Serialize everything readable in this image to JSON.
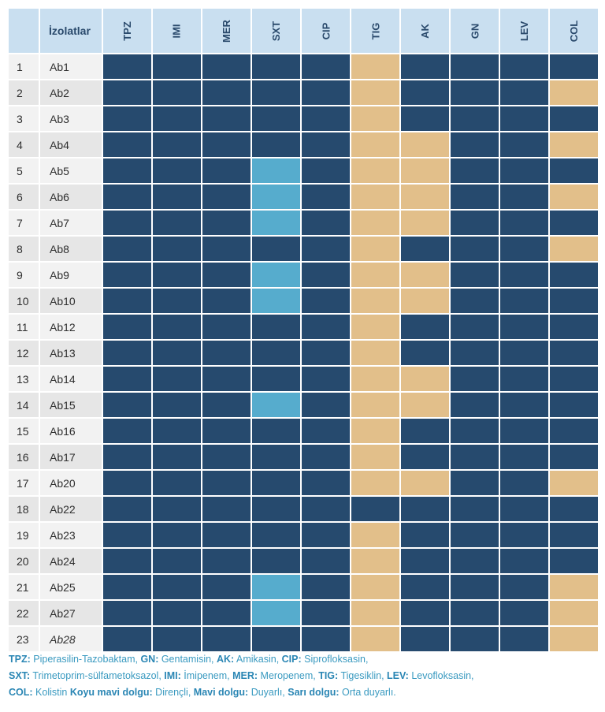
{
  "table": {
    "corner_label": "",
    "isolates_header": "İzolatlar",
    "antibiotics": [
      "TPZ",
      "IMI",
      "MER",
      "SXT",
      "CIP",
      "TIG",
      "AK",
      "GN",
      "LEV",
      "COL"
    ],
    "fill_colors": {
      "R": "#264a6e",
      "S": "#56accd",
      "I": "#e2bf8a"
    },
    "rows": [
      {
        "num": "1",
        "isolate": "Ab1",
        "values": [
          "R",
          "R",
          "R",
          "R",
          "R",
          "I",
          "R",
          "R",
          "R",
          "R"
        ]
      },
      {
        "num": "2",
        "isolate": "Ab2",
        "values": [
          "R",
          "R",
          "R",
          "R",
          "R",
          "I",
          "R",
          "R",
          "R",
          "I"
        ]
      },
      {
        "num": "3",
        "isolate": "Ab3",
        "values": [
          "R",
          "R",
          "R",
          "R",
          "R",
          "I",
          "R",
          "R",
          "R",
          "R"
        ]
      },
      {
        "num": "4",
        "isolate": "Ab4",
        "values": [
          "R",
          "R",
          "R",
          "R",
          "R",
          "I",
          "I",
          "R",
          "R",
          "I"
        ]
      },
      {
        "num": "5",
        "isolate": "Ab5",
        "values": [
          "R",
          "R",
          "R",
          "S",
          "R",
          "I",
          "I",
          "R",
          "R",
          "R"
        ]
      },
      {
        "num": "6",
        "isolate": "Ab6",
        "values": [
          "R",
          "R",
          "R",
          "S",
          "R",
          "I",
          "I",
          "R",
          "R",
          "I"
        ]
      },
      {
        "num": "7",
        "isolate": "Ab7",
        "values": [
          "R",
          "R",
          "R",
          "S",
          "R",
          "I",
          "I",
          "R",
          "R",
          "R"
        ]
      },
      {
        "num": "8",
        "isolate": "Ab8",
        "values": [
          "R",
          "R",
          "R",
          "R",
          "R",
          "I",
          "R",
          "R",
          "R",
          "I"
        ]
      },
      {
        "num": "9",
        "isolate": "Ab9",
        "values": [
          "R",
          "R",
          "R",
          "S",
          "R",
          "I",
          "I",
          "R",
          "R",
          "R"
        ]
      },
      {
        "num": "10",
        "isolate": "Ab10",
        "values": [
          "R",
          "R",
          "R",
          "S",
          "R",
          "I",
          "I",
          "R",
          "R",
          "R"
        ]
      },
      {
        "num": "11",
        "isolate": "Ab12",
        "values": [
          "R",
          "R",
          "R",
          "R",
          "R",
          "I",
          "R",
          "R",
          "R",
          "R"
        ]
      },
      {
        "num": "12",
        "isolate": "Ab13",
        "values": [
          "R",
          "R",
          "R",
          "R",
          "R",
          "I",
          "R",
          "R",
          "R",
          "R"
        ]
      },
      {
        "num": "13",
        "isolate": "Ab14",
        "values": [
          "R",
          "R",
          "R",
          "R",
          "R",
          "I",
          "I",
          "R",
          "R",
          "R"
        ]
      },
      {
        "num": "14",
        "isolate": "Ab15",
        "values": [
          "R",
          "R",
          "R",
          "S",
          "R",
          "I",
          "I",
          "R",
          "R",
          "R"
        ]
      },
      {
        "num": "15",
        "isolate": "Ab16",
        "values": [
          "R",
          "R",
          "R",
          "R",
          "R",
          "I",
          "R",
          "R",
          "R",
          "R"
        ]
      },
      {
        "num": "16",
        "isolate": "Ab17",
        "values": [
          "R",
          "R",
          "R",
          "R",
          "R",
          "I",
          "R",
          "R",
          "R",
          "R"
        ]
      },
      {
        "num": "17",
        "isolate": "Ab20",
        "values": [
          "R",
          "R",
          "R",
          "R",
          "R",
          "I",
          "I",
          "R",
          "R",
          "I"
        ]
      },
      {
        "num": "18",
        "isolate": "Ab22",
        "values": [
          "R",
          "R",
          "R",
          "R",
          "R",
          "R",
          "R",
          "R",
          "R",
          "R"
        ]
      },
      {
        "num": "19",
        "isolate": "Ab23",
        "values": [
          "R",
          "R",
          "R",
          "R",
          "R",
          "I",
          "R",
          "R",
          "R",
          "R"
        ]
      },
      {
        "num": "20",
        "isolate": "Ab24",
        "values": [
          "R",
          "R",
          "R",
          "R",
          "R",
          "I",
          "R",
          "R",
          "R",
          "R"
        ]
      },
      {
        "num": "21",
        "isolate": "Ab25",
        "values": [
          "R",
          "R",
          "R",
          "S",
          "R",
          "I",
          "R",
          "R",
          "R",
          "I"
        ]
      },
      {
        "num": "22",
        "isolate": "Ab27",
        "values": [
          "R",
          "R",
          "R",
          "S",
          "R",
          "I",
          "R",
          "R",
          "R",
          "I"
        ]
      },
      {
        "num": "23",
        "isolate": "Ab28",
        "italic": true,
        "values": [
          "R",
          "R",
          "R",
          "R",
          "R",
          "I",
          "R",
          "R",
          "R",
          "I"
        ]
      }
    ]
  },
  "legend": {
    "lines": [
      [
        {
          "key": "TPZ:",
          "text": " Piperasilin-Tazobaktam, "
        },
        {
          "key": "GN:",
          "text": " Gentamisin, "
        },
        {
          "key": "AK:",
          "text": " Amikasin, "
        },
        {
          "key": "CIP:",
          "text": " Siprofloksasin,"
        }
      ],
      [
        {
          "key": "SXT:",
          "text": " Trimetoprim-sülfametoksazol, "
        },
        {
          "key": "IMI:",
          "text": " İmipenem, "
        },
        {
          "key": "MER:",
          "text": " Meropenem, "
        },
        {
          "key": "TIG:",
          "text": " Tigesiklin, "
        },
        {
          "key": "LEV:",
          "text": " Levofloksasin,"
        }
      ],
      [
        {
          "key": "COL:",
          "text": " Kolistin "
        },
        {
          "key": "Koyu mavi dolgu:",
          "text": " Dirençli, "
        },
        {
          "key": "Mavi dolgu:",
          "text": " Duyarlı, "
        },
        {
          "key": "Sarı dolgu:",
          "text": " Orta duyarlı."
        }
      ]
    ]
  }
}
